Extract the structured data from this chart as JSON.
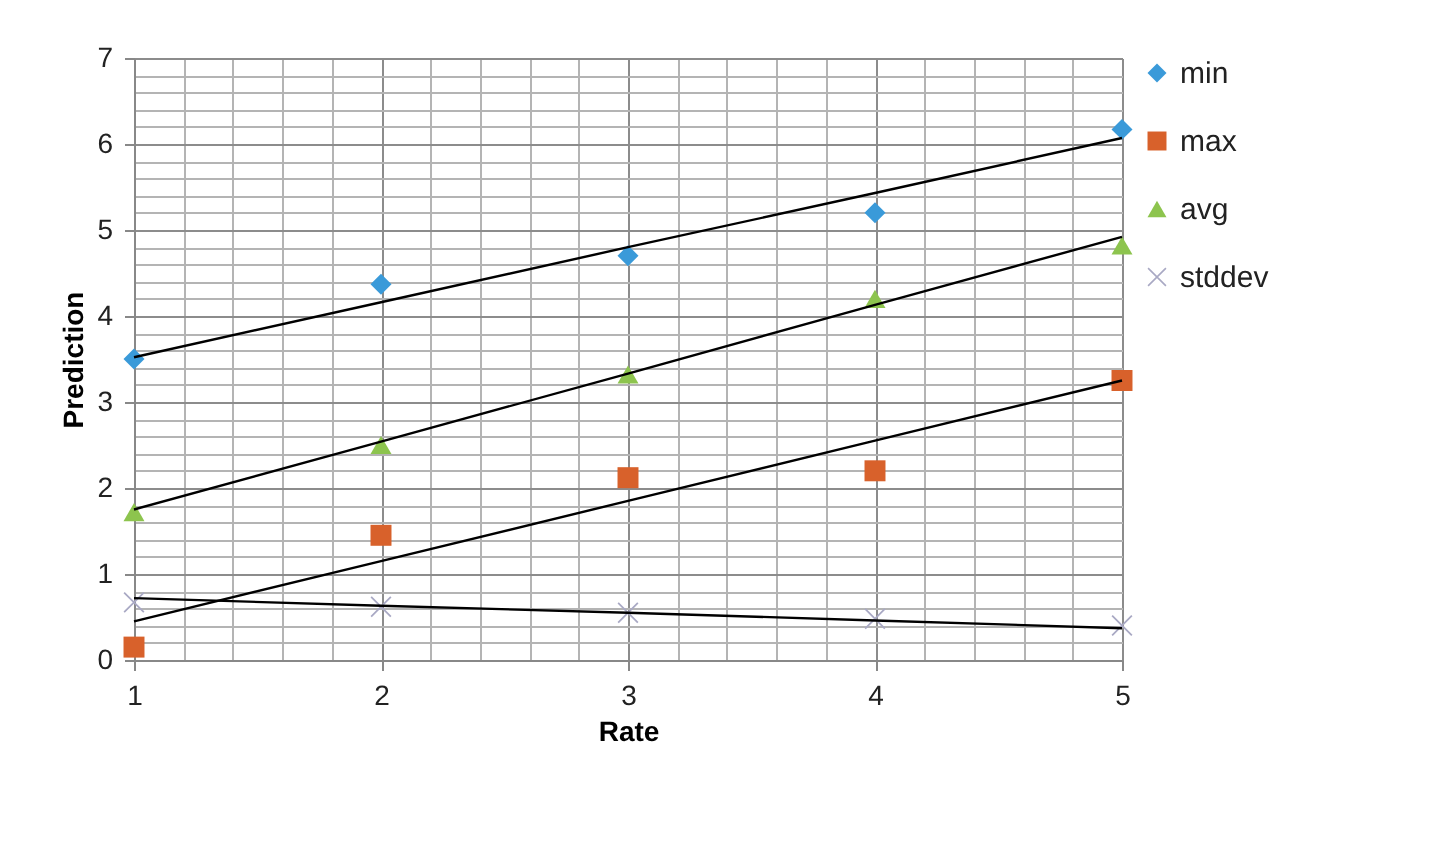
{
  "chart_data": {
    "type": "scatter",
    "xlabel": "Rate",
    "ylabel": "Prediction",
    "x": [
      1,
      2,
      3,
      4,
      5
    ],
    "series": [
      {
        "name": "min",
        "color": "#3a9ad9",
        "marker": "diamond",
        "values": [
          3.5,
          4.37,
          4.7,
          5.2,
          6.17
        ]
      },
      {
        "name": "max",
        "color": "#d8612b",
        "marker": "square",
        "values": [
          0.15,
          1.45,
          2.12,
          2.2,
          3.25
        ]
      },
      {
        "name": "avg",
        "color": "#8dc44e",
        "marker": "triangle",
        "values": [
          1.72,
          2.5,
          3.32,
          4.2,
          4.82
        ]
      },
      {
        "name": "stddev",
        "color": "#a9a9c4",
        "marker": "cross",
        "values": [
          0.67,
          0.62,
          0.55,
          0.48,
          0.4
        ]
      },
      {
        "type": "line",
        "color": "#000000",
        "values": [
          3.52,
          4.16,
          4.8,
          5.43,
          6.07
        ]
      },
      {
        "type": "line",
        "color": "#000000",
        "values": [
          0.45,
          1.15,
          1.85,
          2.55,
          3.25
        ]
      },
      {
        "type": "line",
        "color": "#000000",
        "values": [
          1.75,
          2.54,
          3.33,
          4.13,
          4.92
        ]
      },
      {
        "type": "line",
        "color": "#000000",
        "values": [
          0.72,
          0.63,
          0.55,
          0.46,
          0.37
        ]
      }
    ],
    "xlim": [
      1,
      5
    ],
    "xticks": [
      1,
      2,
      3,
      4,
      5
    ],
    "ylim": [
      0,
      7
    ],
    "yticks": [
      0,
      1,
      2,
      3,
      4,
      5,
      6,
      7
    ],
    "grid": true,
    "legend": "right"
  }
}
